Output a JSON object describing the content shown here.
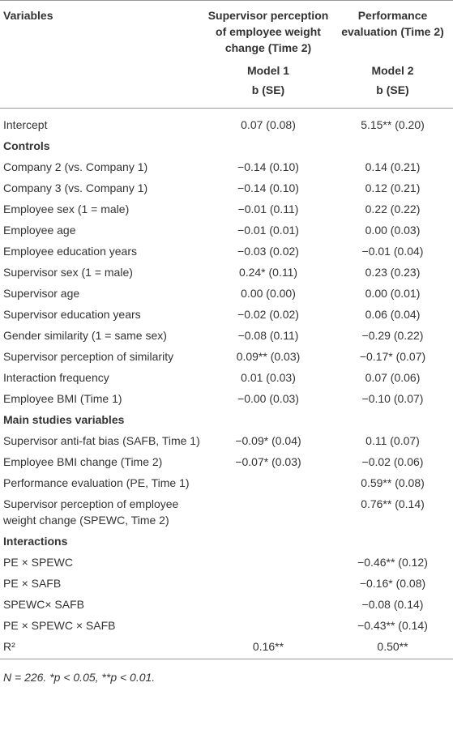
{
  "table": {
    "headers": [
      "Variables",
      "Supervisor perception of employee weight change (Time 2)",
      "Performance evaluation (Time 2)"
    ],
    "models": [
      "Model 1",
      "Model 2"
    ],
    "stats": [
      "b (SE)",
      "b (SE)"
    ],
    "rows": [
      [
        "Intercept",
        "0.07 (0.08)",
        "5.15** (0.20)"
      ],
      {
        "section": "Controls"
      },
      [
        "Company 2 (vs. Company 1)",
        "−0.14 (0.10)",
        "0.14 (0.21)"
      ],
      [
        "Company 3 (vs. Company 1)",
        "−0.14 (0.10)",
        "0.12 (0.21)"
      ],
      [
        "Employee sex (1 = male)",
        "−0.01 (0.11)",
        "0.22 (0.22)"
      ],
      [
        "Employee age",
        "−0.01 (0.01)",
        "0.00 (0.03)"
      ],
      [
        "Employee education years",
        "−0.03 (0.02)",
        "−0.01 (0.04)"
      ],
      [
        "Supervisor sex (1 = male)",
        "0.24* (0.11)",
        "0.23 (0.23)"
      ],
      [
        "Supervisor age",
        "0.00 (0.00)",
        "0.00 (0.01)"
      ],
      [
        "Supervisor education years",
        "−0.02 (0.02)",
        "0.06 (0.04)"
      ],
      [
        "Gender similarity (1 = same sex)",
        "−0.08 (0.11)",
        "−0.29 (0.22)"
      ],
      [
        "Supervisor perception of similarity",
        "0.09** (0.03)",
        "−0.17* (0.07)"
      ],
      [
        "Interaction frequency",
        "0.01 (0.03)",
        "0.07 (0.06)"
      ],
      [
        "Employee BMI (Time 1)",
        "−0.00 (0.03)",
        "−0.10 (0.07)"
      ],
      {
        "section": "Main studies variables"
      },
      [
        "Supervisor anti-fat bias (SAFB, Time 1)",
        "−0.09* (0.04)",
        "0.11 (0.07)"
      ],
      [
        "Employee BMI change (Time 2)",
        "−0.07* (0.03)",
        "−0.02 (0.06)"
      ],
      [
        "Performance evaluation (PE, Time 1)",
        null,
        "0.59** (0.08)"
      ],
      [
        "Supervisor perception of employee weight change (SPEWC, Time 2)",
        null,
        "0.76** (0.14)"
      ],
      {
        "section": "Interactions"
      },
      [
        "PE × SPEWC",
        null,
        "−0.46** (0.12)"
      ],
      [
        "PE × SAFB",
        null,
        "−0.16* (0.08)"
      ],
      [
        "SPEWC× SAFB",
        null,
        "−0.08 (0.14)"
      ],
      [
        "PE × SPEWC × SAFB",
        null,
        "−0.43** (0.14)"
      ],
      [
        "R²",
        "0.16**",
        "0.50**"
      ]
    ],
    "note": "N = 226. *p < 0.05, **p < 0.01."
  }
}
